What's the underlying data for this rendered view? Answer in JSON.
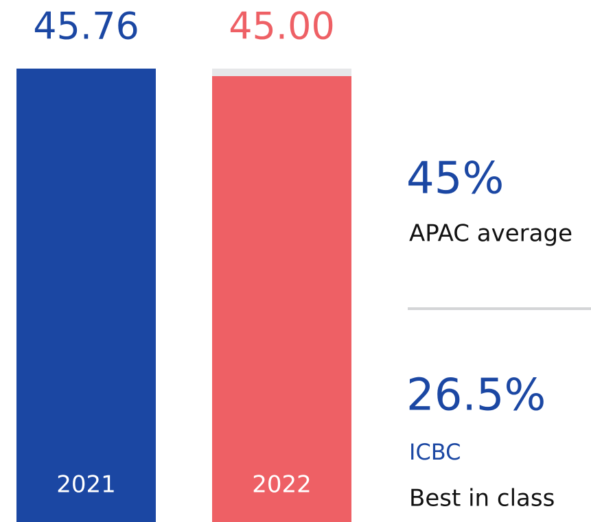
{
  "chart_data": {
    "type": "bar",
    "categories": [
      "2021",
      "2022"
    ],
    "values": [
      45.76,
      45.0
    ],
    "value_labels": [
      "45.76",
      "45.00"
    ],
    "colors": [
      "#1b47a3",
      "#ee6065"
    ],
    "ylim": [
      0,
      45.76
    ],
    "benchmarks": [
      {
        "figure": "45%",
        "caption": "APAC average"
      },
      {
        "figure": "26.5%",
        "bank": "ICBC",
        "caption": "Best in class"
      }
    ]
  }
}
